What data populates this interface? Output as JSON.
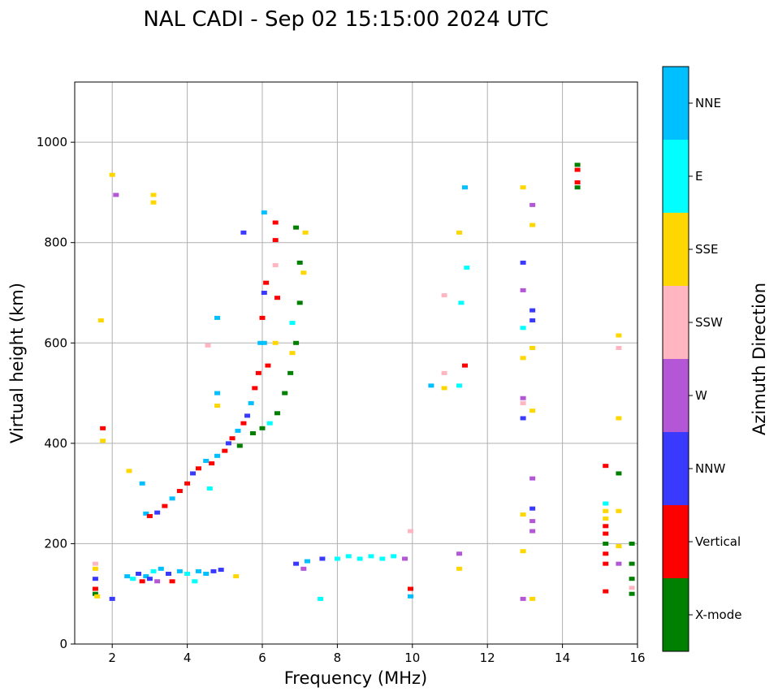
{
  "chart_data": {
    "type": "scatter",
    "title": "NAL CADI - Sep 02 15:15:00 2024 UTC",
    "xlabel": "Frequency (MHz)",
    "ylabel": "Virtual height (km)",
    "xlim": [
      1,
      16
    ],
    "ylim": [
      0,
      1120
    ],
    "xticks": [
      2,
      4,
      6,
      8,
      10,
      12,
      14,
      16
    ],
    "yticks": [
      0,
      200,
      400,
      600,
      800,
      1000
    ],
    "grid": true,
    "colorbar": {
      "label": "Azimuth Direction",
      "categories": [
        {
          "name": "X-mode",
          "color": "#008000"
        },
        {
          "name": "Vertical",
          "color": "#ff0000"
        },
        {
          "name": "NNW",
          "color": "#3a3aff"
        },
        {
          "name": "W",
          "color": "#b357d6"
        },
        {
          "name": "SSW",
          "color": "#ffb6c1"
        },
        {
          "name": "SSE",
          "color": "#ffd700"
        },
        {
          "name": "E",
          "color": "#00ffff"
        },
        {
          "name": "NNE",
          "color": "#00bfff"
        }
      ]
    },
    "points": [
      {
        "x": 1.55,
        "y": 100,
        "dir": "X-mode"
      },
      {
        "x": 1.55,
        "y": 110,
        "dir": "Vertical"
      },
      {
        "x": 1.55,
        "y": 130,
        "dir": "NNW"
      },
      {
        "x": 1.55,
        "y": 150,
        "dir": "SSE"
      },
      {
        "x": 1.55,
        "y": 160,
        "dir": "SSW"
      },
      {
        "x": 1.6,
        "y": 95,
        "dir": "SSE"
      },
      {
        "x": 1.7,
        "y": 645,
        "dir": "SSE"
      },
      {
        "x": 1.75,
        "y": 430,
        "dir": "Vertical"
      },
      {
        "x": 1.75,
        "y": 405,
        "dir": "SSE"
      },
      {
        "x": 2.0,
        "y": 90,
        "dir": "NNW"
      },
      {
        "x": 2.0,
        "y": 935,
        "dir": "SSE"
      },
      {
        "x": 2.1,
        "y": 895,
        "dir": "W"
      },
      {
        "x": 2.45,
        "y": 345,
        "dir": "SSE"
      },
      {
        "x": 2.8,
        "y": 320,
        "dir": "NNE"
      },
      {
        "x": 3.1,
        "y": 895,
        "dir": "SSE"
      },
      {
        "x": 3.1,
        "y": 880,
        "dir": "SSE"
      },
      {
        "x": 2.4,
        "y": 135,
        "dir": "NNE"
      },
      {
        "x": 2.55,
        "y": 130,
        "dir": "E"
      },
      {
        "x": 2.7,
        "y": 140,
        "dir": "NNW"
      },
      {
        "x": 2.8,
        "y": 125,
        "dir": "Vertical"
      },
      {
        "x": 2.9,
        "y": 135,
        "dir": "NNE"
      },
      {
        "x": 3.0,
        "y": 130,
        "dir": "NNW"
      },
      {
        "x": 3.1,
        "y": 145,
        "dir": "E"
      },
      {
        "x": 3.2,
        "y": 125,
        "dir": "W"
      },
      {
        "x": 3.3,
        "y": 150,
        "dir": "NNE"
      },
      {
        "x": 3.5,
        "y": 140,
        "dir": "NNW"
      },
      {
        "x": 3.6,
        "y": 125,
        "dir": "Vertical"
      },
      {
        "x": 3.8,
        "y": 145,
        "dir": "NNE"
      },
      {
        "x": 4.0,
        "y": 140,
        "dir": "E"
      },
      {
        "x": 4.2,
        "y": 125,
        "dir": "E"
      },
      {
        "x": 4.3,
        "y": 145,
        "dir": "NNE"
      },
      {
        "x": 4.5,
        "y": 140,
        "dir": "NNE"
      },
      {
        "x": 4.7,
        "y": 145,
        "dir": "NNW"
      },
      {
        "x": 4.9,
        "y": 148,
        "dir": "NNW"
      },
      {
        "x": 5.3,
        "y": 135,
        "dir": "SSE"
      },
      {
        "x": 2.9,
        "y": 260,
        "dir": "NNE"
      },
      {
        "x": 3.0,
        "y": 255,
        "dir": "Vertical"
      },
      {
        "x": 3.2,
        "y": 262,
        "dir": "NNW"
      },
      {
        "x": 3.4,
        "y": 275,
        "dir": "Vertical"
      },
      {
        "x": 3.6,
        "y": 290,
        "dir": "NNE"
      },
      {
        "x": 3.8,
        "y": 305,
        "dir": "Vertical"
      },
      {
        "x": 4.0,
        "y": 320,
        "dir": "Vertical"
      },
      {
        "x": 4.15,
        "y": 340,
        "dir": "NNW"
      },
      {
        "x": 4.3,
        "y": 350,
        "dir": "Vertical"
      },
      {
        "x": 4.5,
        "y": 365,
        "dir": "NNE"
      },
      {
        "x": 4.65,
        "y": 360,
        "dir": "Vertical"
      },
      {
        "x": 4.8,
        "y": 375,
        "dir": "NNE"
      },
      {
        "x": 5.0,
        "y": 385,
        "dir": "Vertical"
      },
      {
        "x": 5.1,
        "y": 400,
        "dir": "NNW"
      },
      {
        "x": 5.2,
        "y": 410,
        "dir": "Vertical"
      },
      {
        "x": 5.35,
        "y": 425,
        "dir": "NNE"
      },
      {
        "x": 5.4,
        "y": 395,
        "dir": "X-mode"
      },
      {
        "x": 5.5,
        "y": 440,
        "dir": "Vertical"
      },
      {
        "x": 5.6,
        "y": 455,
        "dir": "NNW"
      },
      {
        "x": 5.7,
        "y": 480,
        "dir": "NNE"
      },
      {
        "x": 5.75,
        "y": 420,
        "dir": "X-mode"
      },
      {
        "x": 5.8,
        "y": 510,
        "dir": "Vertical"
      },
      {
        "x": 5.9,
        "y": 540,
        "dir": "Vertical"
      },
      {
        "x": 5.95,
        "y": 600,
        "dir": "NNE"
      },
      {
        "x": 6.0,
        "y": 650,
        "dir": "Vertical"
      },
      {
        "x": 6.05,
        "y": 700,
        "dir": "NNW"
      },
      {
        "x": 6.1,
        "y": 720,
        "dir": "Vertical"
      },
      {
        "x": 6.05,
        "y": 860,
        "dir": "NNE"
      },
      {
        "x": 6.15,
        "y": 555,
        "dir": "Vertical"
      },
      {
        "x": 6.35,
        "y": 840,
        "dir": "Vertical"
      },
      {
        "x": 6.35,
        "y": 805,
        "dir": "Vertical"
      },
      {
        "x": 6.35,
        "y": 755,
        "dir": "SSW"
      },
      {
        "x": 6.35,
        "y": 600,
        "dir": "SSE"
      },
      {
        "x": 6.4,
        "y": 690,
        "dir": "Vertical"
      },
      {
        "x": 5.5,
        "y": 820,
        "dir": "NNW"
      },
      {
        "x": 6.0,
        "y": 430,
        "dir": "X-mode"
      },
      {
        "x": 6.2,
        "y": 440,
        "dir": "E"
      },
      {
        "x": 6.4,
        "y": 460,
        "dir": "X-mode"
      },
      {
        "x": 6.6,
        "y": 500,
        "dir": "X-mode"
      },
      {
        "x": 6.75,
        "y": 540,
        "dir": "X-mode"
      },
      {
        "x": 6.9,
        "y": 600,
        "dir": "X-mode"
      },
      {
        "x": 7.0,
        "y": 680,
        "dir": "X-mode"
      },
      {
        "x": 7.0,
        "y": 760,
        "dir": "X-mode"
      },
      {
        "x": 6.9,
        "y": 830,
        "dir": "X-mode"
      },
      {
        "x": 7.1,
        "y": 740,
        "dir": "SSE"
      },
      {
        "x": 7.15,
        "y": 820,
        "dir": "SSE"
      },
      {
        "x": 6.8,
        "y": 640,
        "dir": "E"
      },
      {
        "x": 6.8,
        "y": 580,
        "dir": "SSE"
      },
      {
        "x": 6.05,
        "y": 600,
        "dir": "NNE"
      },
      {
        "x": 4.55,
        "y": 595,
        "dir": "SSW"
      },
      {
        "x": 4.8,
        "y": 650,
        "dir": "NNE"
      },
      {
        "x": 4.8,
        "y": 500,
        "dir": "NNE"
      },
      {
        "x": 4.8,
        "y": 475,
        "dir": "SSE"
      },
      {
        "x": 4.6,
        "y": 310,
        "dir": "E"
      },
      {
        "x": 6.9,
        "y": 160,
        "dir": "NNW"
      },
      {
        "x": 7.1,
        "y": 150,
        "dir": "W"
      },
      {
        "x": 7.2,
        "y": 165,
        "dir": "NNE"
      },
      {
        "x": 7.55,
        "y": 90,
        "dir": "E"
      },
      {
        "x": 7.6,
        "y": 170,
        "dir": "NNW"
      },
      {
        "x": 8.0,
        "y": 170,
        "dir": "E"
      },
      {
        "x": 8.3,
        "y": 175,
        "dir": "E"
      },
      {
        "x": 8.6,
        "y": 170,
        "dir": "E"
      },
      {
        "x": 8.9,
        "y": 175,
        "dir": "E"
      },
      {
        "x": 9.2,
        "y": 170,
        "dir": "E"
      },
      {
        "x": 9.5,
        "y": 175,
        "dir": "E"
      },
      {
        "x": 9.8,
        "y": 170,
        "dir": "W"
      },
      {
        "x": 9.95,
        "y": 110,
        "dir": "Vertical"
      },
      {
        "x": 9.95,
        "y": 95,
        "dir": "NNE"
      },
      {
        "x": 9.95,
        "y": 225,
        "dir": "SSW"
      },
      {
        "x": 10.5,
        "y": 515,
        "dir": "NNE"
      },
      {
        "x": 10.85,
        "y": 540,
        "dir": "SSW"
      },
      {
        "x": 10.85,
        "y": 510,
        "dir": "SSE"
      },
      {
        "x": 10.85,
        "y": 695,
        "dir": "SSW"
      },
      {
        "x": 11.25,
        "y": 820,
        "dir": "SSE"
      },
      {
        "x": 11.3,
        "y": 680,
        "dir": "E"
      },
      {
        "x": 11.4,
        "y": 910,
        "dir": "NNE"
      },
      {
        "x": 11.45,
        "y": 750,
        "dir": "E"
      },
      {
        "x": 11.4,
        "y": 555,
        "dir": "Vertical"
      },
      {
        "x": 11.25,
        "y": 515,
        "dir": "E"
      },
      {
        "x": 11.25,
        "y": 180,
        "dir": "W"
      },
      {
        "x": 11.25,
        "y": 150,
        "dir": "SSE"
      },
      {
        "x": 12.95,
        "y": 910,
        "dir": "SSE"
      },
      {
        "x": 12.95,
        "y": 760,
        "dir": "NNW"
      },
      {
        "x": 12.95,
        "y": 705,
        "dir": "W"
      },
      {
        "x": 12.95,
        "y": 630,
        "dir": "E"
      },
      {
        "x": 12.95,
        "y": 570,
        "dir": "SSE"
      },
      {
        "x": 12.95,
        "y": 490,
        "dir": "W"
      },
      {
        "x": 12.95,
        "y": 480,
        "dir": "SSW"
      },
      {
        "x": 12.95,
        "y": 450,
        "dir": "NNW"
      },
      {
        "x": 12.95,
        "y": 258,
        "dir": "SSE"
      },
      {
        "x": 12.95,
        "y": 185,
        "dir": "SSE"
      },
      {
        "x": 12.95,
        "y": 90,
        "dir": "W"
      },
      {
        "x": 13.2,
        "y": 875,
        "dir": "W"
      },
      {
        "x": 13.2,
        "y": 835,
        "dir": "SSE"
      },
      {
        "x": 13.2,
        "y": 665,
        "dir": "NNW"
      },
      {
        "x": 13.2,
        "y": 645,
        "dir": "NNW"
      },
      {
        "x": 13.2,
        "y": 590,
        "dir": "SSE"
      },
      {
        "x": 13.2,
        "y": 465,
        "dir": "SSE"
      },
      {
        "x": 13.2,
        "y": 330,
        "dir": "W"
      },
      {
        "x": 13.2,
        "y": 270,
        "dir": "NNW"
      },
      {
        "x": 13.2,
        "y": 245,
        "dir": "W"
      },
      {
        "x": 13.2,
        "y": 225,
        "dir": "W"
      },
      {
        "x": 13.2,
        "y": 90,
        "dir": "SSE"
      },
      {
        "x": 14.4,
        "y": 955,
        "dir": "X-mode"
      },
      {
        "x": 14.4,
        "y": 945,
        "dir": "Vertical"
      },
      {
        "x": 14.4,
        "y": 920,
        "dir": "Vertical"
      },
      {
        "x": 14.4,
        "y": 910,
        "dir": "X-mode"
      },
      {
        "x": 15.15,
        "y": 355,
        "dir": "Vertical"
      },
      {
        "x": 15.5,
        "y": 340,
        "dir": "X-mode"
      },
      {
        "x": 15.5,
        "y": 615,
        "dir": "SSE"
      },
      {
        "x": 15.5,
        "y": 590,
        "dir": "SSW"
      },
      {
        "x": 15.5,
        "y": 450,
        "dir": "SSE"
      },
      {
        "x": 15.15,
        "y": 280,
        "dir": "E"
      },
      {
        "x": 15.15,
        "y": 265,
        "dir": "SSE"
      },
      {
        "x": 15.15,
        "y": 250,
        "dir": "SSE"
      },
      {
        "x": 15.15,
        "y": 235,
        "dir": "Vertical"
      },
      {
        "x": 15.15,
        "y": 220,
        "dir": "Vertical"
      },
      {
        "x": 15.15,
        "y": 200,
        "dir": "X-mode"
      },
      {
        "x": 15.15,
        "y": 180,
        "dir": "Vertical"
      },
      {
        "x": 15.15,
        "y": 160,
        "dir": "Vertical"
      },
      {
        "x": 15.15,
        "y": 105,
        "dir": "Vertical"
      },
      {
        "x": 15.5,
        "y": 265,
        "dir": "SSE"
      },
      {
        "x": 15.5,
        "y": 195,
        "dir": "SSE"
      },
      {
        "x": 15.5,
        "y": 160,
        "dir": "W"
      },
      {
        "x": 15.85,
        "y": 200,
        "dir": "X-mode"
      },
      {
        "x": 15.85,
        "y": 160,
        "dir": "X-mode"
      },
      {
        "x": 15.85,
        "y": 130,
        "dir": "X-mode"
      },
      {
        "x": 15.85,
        "y": 100,
        "dir": "X-mode"
      },
      {
        "x": 15.85,
        "y": 112,
        "dir": "SSW"
      }
    ]
  }
}
